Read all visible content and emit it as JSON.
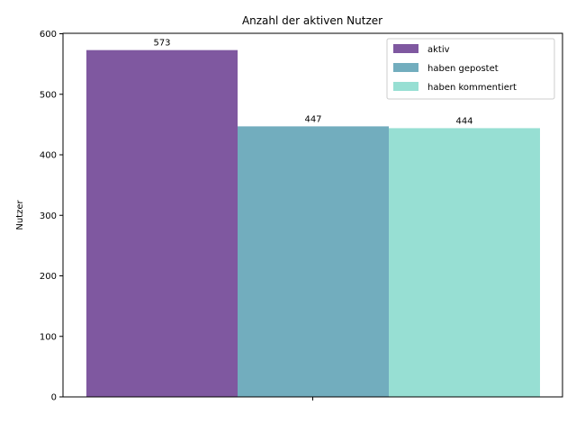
{
  "chart_data": {
    "type": "bar",
    "title": "Anzahl der aktiven Nutzer",
    "xlabel": "",
    "ylabel": "Nutzer",
    "ylim": [
      0,
      600
    ],
    "yticks": [
      0,
      100,
      200,
      300,
      400,
      500,
      600
    ],
    "grid": false,
    "legend_position": "top-right",
    "series": [
      {
        "name": "aktiv",
        "value": 573,
        "color": "#7f58a0"
      },
      {
        "name": "haben gepostet",
        "value": 447,
        "color": "#72adbe"
      },
      {
        "name": "haben kommentiert",
        "value": 444,
        "color": "#97dfd3"
      }
    ]
  }
}
